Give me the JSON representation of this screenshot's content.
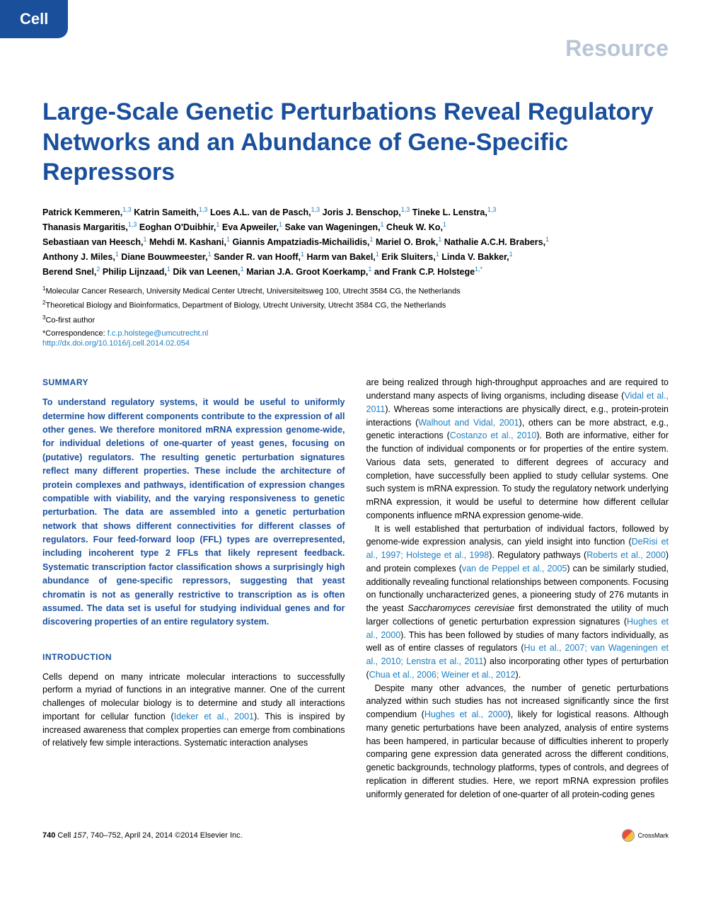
{
  "header": {
    "journal_badge": "Cell",
    "article_type": "Resource"
  },
  "title": "Large-Scale Genetic Perturbations Reveal Regulatory Networks and an Abundance of Gene-Specific Repressors",
  "authors_line1": "Patrick Kemmeren,",
  "authors_sup1": "1,3",
  "authors_line2": " Katrin Sameith,",
  "authors_sup2": "1,3",
  "authors_line3": " Loes A.L. van de Pasch,",
  "authors_sup3": "1,3",
  "authors_line4": " Joris J. Benschop,",
  "authors_sup4": "1,3",
  "authors_line5": " Tineke L. Lenstra,",
  "authors_sup5": "1,3",
  "authors_line6": "Thanasis Margaritis,",
  "authors_sup6": "1,3",
  "authors_line7": " Eoghan O'Duibhir,",
  "authors_sup7": "1",
  "authors_line8": " Eva Apweiler,",
  "authors_sup8": "1",
  "authors_line9": " Sake van Wageningen,",
  "authors_sup9": "1",
  "authors_line10": " Cheuk W. Ko,",
  "authors_sup10": "1",
  "authors_line11": "Sebastiaan van Heesch,",
  "authors_sup11": "1",
  "authors_line12": " Mehdi M. Kashani,",
  "authors_sup12": "1",
  "authors_line13": " Giannis Ampatziadis-Michailidis,",
  "authors_sup13": "1",
  "authors_line14": " Mariel O. Brok,",
  "authors_sup14": "1",
  "authors_line15": " Nathalie A.C.H. Brabers,",
  "authors_sup15": "1",
  "authors_line16": "Anthony J. Miles,",
  "authors_sup16": "1",
  "authors_line17": " Diane Bouwmeester,",
  "authors_sup17": "1",
  "authors_line18": " Sander R. van Hooff,",
  "authors_sup18": "1",
  "authors_line19": " Harm van Bakel,",
  "authors_sup19": "1",
  "authors_line20": " Erik Sluiters,",
  "authors_sup20": "1",
  "authors_line21": " Linda V. Bakker,",
  "authors_sup21": "1",
  "authors_line22": "Berend Snel,",
  "authors_sup22": "2",
  "authors_line23": " Philip Lijnzaad,",
  "authors_sup23": "1",
  "authors_line24": " Dik van Leenen,",
  "authors_sup24": "1",
  "authors_line25": " Marian J.A. Groot Koerkamp,",
  "authors_sup25": "1",
  "authors_line26": " and Frank C.P. Holstege",
  "authors_sup26": "1,*",
  "affiliations": {
    "aff1_sup": "1",
    "aff1": "Molecular Cancer Research, University Medical Center Utrecht, Universiteitsweg 100, Utrecht 3584 CG, the Netherlands",
    "aff2_sup": "2",
    "aff2": "Theoretical Biology and Bioinformatics, Department of Biology, Utrecht University, Utrecht 3584 CG, the Netherlands",
    "aff3_sup": "3",
    "aff3": "Co-first author"
  },
  "correspondence": {
    "label": "*Correspondence: ",
    "email": "f.c.p.holstege@umcutrecht.nl"
  },
  "doi": "http://dx.doi.org/10.1016/j.cell.2014.02.054",
  "sections": {
    "summary_heading": "SUMMARY",
    "summary_text": "To understand regulatory systems, it would be useful to uniformly determine how different components contribute to the expression of all other genes. We therefore monitored mRNA expression genome-wide, for individual deletions of one-quarter of yeast genes, focusing on (putative) regulators. The resulting genetic perturbation signatures reflect many different properties. These include the architecture of protein complexes and pathways, identification of expression changes compatible with viability, and the varying responsiveness to genetic perturbation. The data are assembled into a genetic perturbation network that shows different connectivities for different classes of regulators. Four feed-forward loop (FFL) types are overrepresented, including incoherent type 2 FFLs that likely represent feedback. Systematic transcription factor classification shows a surprisingly high abundance of gene-specific repressors, suggesting that yeast chromatin is not as generally restrictive to transcription as is often assumed. The data set is useful for studying individual genes and for discovering properties of an entire regulatory system.",
    "intro_heading": "INTRODUCTION",
    "intro_p1_a": "Cells depend on many intricate molecular interactions to successfully perform a myriad of functions in an integrative manner. One of the current challenges of molecular biology is to determine and study all interactions important for cellular function (",
    "intro_p1_ref1": "Ideker et al., 2001",
    "intro_p1_b": "). This is inspired by increased awareness that complex properties can emerge from combinations of relatively few simple interactions. Systematic interaction analyses",
    "col2_p1_a": "are being realized through high-throughput approaches and are required to understand many aspects of living organisms, including disease (",
    "col2_p1_ref1": "Vidal et al., 2011",
    "col2_p1_b": "). Whereas some interactions are physically direct, e.g., protein-protein interactions (",
    "col2_p1_ref2": "Walhout and Vidal, 2001",
    "col2_p1_c": "), others can be more abstract, e.g., genetic interactions (",
    "col2_p1_ref3": "Costanzo et al., 2010",
    "col2_p1_d": "). Both are informative, either for the function of individual components or for properties of the entire system. Various data sets, generated to different degrees of accuracy and completion, have successfully been applied to study cellular systems. One such system is mRNA expression. To study the regulatory network underlying mRNA expression, it would be useful to determine how different cellular components influence mRNA expression genome-wide.",
    "col2_p2_a": "It is well established that perturbation of individual factors, followed by genome-wide expression analysis, can yield insight into function (",
    "col2_p2_ref1": "DeRisi et al., 1997; Holstege et al., 1998",
    "col2_p2_b": "). Regulatory pathways (",
    "col2_p2_ref2": "Roberts et al., 2000",
    "col2_p2_c": ") and protein complexes (",
    "col2_p2_ref3": "van de Peppel et al., 2005",
    "col2_p2_d": ") can be similarly studied, additionally revealing functional relationships between components. Focusing on functionally uncharacterized genes, a pioneering study of 276 mutants in the yeast ",
    "col2_p2_italic": "Saccharomyces cerevisiae",
    "col2_p2_e": " first demonstrated the utility of much larger collections of genetic perturbation expression signatures (",
    "col2_p2_ref4": "Hughes et al., 2000",
    "col2_p2_f": "). This has been followed by studies of many factors individually, as well as of entire classes of regulators (",
    "col2_p2_ref5": "Hu et al., 2007; van Wageningen et al., 2010; Lenstra et al., 2011",
    "col2_p2_g": ") also incorporating other types of perturbation (",
    "col2_p2_ref6": "Chua et al., 2006; Weiner et al., 2012",
    "col2_p2_h": ").",
    "col2_p3_a": "Despite many other advances, the number of genetic perturbations analyzed within such studies has not increased significantly since the first compendium (",
    "col2_p3_ref1": "Hughes et al., 2000",
    "col2_p3_b": "), likely for logistical reasons. Although many genetic perturbations have been analyzed, analysis of entire systems has been hampered, in particular because of difficulties inherent to properly comparing gene expression data generated across the different conditions, genetic backgrounds, technology platforms, types of controls, and degrees of replication in different studies. Here, we report mRNA expression profiles uniformly generated for deletion of one-quarter of all protein-coding genes"
  },
  "footer": {
    "citation_a": "740",
    "citation_b": "   Cell ",
    "citation_c": "157",
    "citation_d": ", 740–752, April 24, 2014 ©2014 Elsevier Inc.",
    "crossmark": "CrossMark"
  },
  "styling": {
    "brand_color": "#1a4f9c",
    "link_color": "#1a7fc4",
    "resource_color": "#b8c5d6",
    "body_font_size": 12.5,
    "title_font_size": 34,
    "background_color": "#ffffff"
  }
}
